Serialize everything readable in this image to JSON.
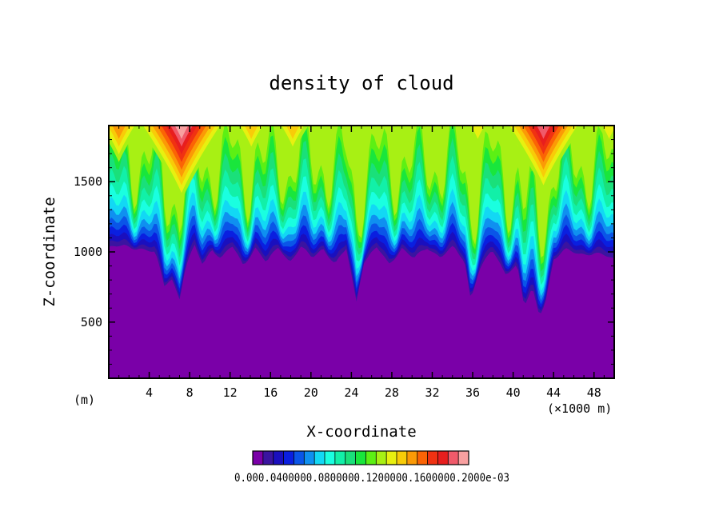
{
  "chart_data": {
    "type": "heatmap",
    "title": "density of cloud",
    "xlabel": "X-coordinate",
    "ylabel": "Z-coordinate",
    "x_unit_label": "(m)",
    "x_scale_label": "(×1000 m)",
    "xlim": [
      0,
      50
    ],
    "ylim": [
      100,
      1900
    ],
    "x_ticks": [
      4,
      8,
      12,
      16,
      20,
      24,
      28,
      32,
      36,
      40,
      44,
      48
    ],
    "x_tick_labels": [
      "4",
      "8",
      "12",
      "16",
      "20",
      "24",
      "28",
      "32",
      "36",
      "40",
      "44",
      "48"
    ],
    "y_ticks": [
      500,
      1000,
      1500
    ],
    "y_tick_labels": [
      "500",
      "1000",
      "1500"
    ],
    "colorbar": {
      "colors": [
        "#7a00a8",
        "#3a14a0",
        "#1a0fbe",
        "#0a1fe0",
        "#0a55e8",
        "#0f90f0",
        "#12d8f4",
        "#1affe0",
        "#12f0a8",
        "#1ae07a",
        "#19e63c",
        "#5cf014",
        "#a8f014",
        "#e8f010",
        "#f8cc08",
        "#fb9a06",
        "#fb6405",
        "#f03212",
        "#e81e1e",
        "#f05a6a",
        "#f8a0a0"
      ],
      "label_text": "0.000.0400000.0800000.1200000.1600000.2000e-03"
    },
    "cloud_base": [
      {
        "x": 0,
        "z": 1000
      },
      {
        "x": 1.5,
        "z": 1010
      },
      {
        "x": 3,
        "z": 1000
      },
      {
        "x": 4.6,
        "z": 960
      },
      {
        "x": 5.5,
        "z": 730
      },
      {
        "x": 6.2,
        "z": 790
      },
      {
        "x": 7.0,
        "z": 640
      },
      {
        "x": 7.6,
        "z": 860
      },
      {
        "x": 8.5,
        "z": 1010
      },
      {
        "x": 9.3,
        "z": 880
      },
      {
        "x": 10.2,
        "z": 1000
      },
      {
        "x": 11.1,
        "z": 920
      },
      {
        "x": 12.2,
        "z": 1010
      },
      {
        "x": 13.3,
        "z": 880
      },
      {
        "x": 14.5,
        "z": 1000
      },
      {
        "x": 15.6,
        "z": 890
      },
      {
        "x": 16.8,
        "z": 1010
      },
      {
        "x": 17.9,
        "z": 900
      },
      {
        "x": 19.0,
        "z": 1000
      },
      {
        "x": 20.1,
        "z": 930
      },
      {
        "x": 21.2,
        "z": 1000
      },
      {
        "x": 22.4,
        "z": 880
      },
      {
        "x": 23.5,
        "z": 990
      },
      {
        "x": 24.5,
        "z": 620
      },
      {
        "x": 25.2,
        "z": 900
      },
      {
        "x": 26.5,
        "z": 1000
      },
      {
        "x": 27.7,
        "z": 880
      },
      {
        "x": 29.0,
        "z": 1000
      },
      {
        "x": 30.2,
        "z": 920
      },
      {
        "x": 31.5,
        "z": 1000
      },
      {
        "x": 32.8,
        "z": 940
      },
      {
        "x": 34.1,
        "z": 1000
      },
      {
        "x": 35.2,
        "z": 900
      },
      {
        "x": 35.8,
        "z": 640
      },
      {
        "x": 36.6,
        "z": 840
      },
      {
        "x": 37.9,
        "z": 980
      },
      {
        "x": 39.2,
        "z": 820
      },
      {
        "x": 40.4,
        "z": 880
      },
      {
        "x": 41.1,
        "z": 580
      },
      {
        "x": 41.9,
        "z": 700
      },
      {
        "x": 42.6,
        "z": 520
      },
      {
        "x": 43.2,
        "z": 620
      },
      {
        "x": 44.0,
        "z": 920
      },
      {
        "x": 45.2,
        "z": 980
      },
      {
        "x": 46.5,
        "z": 960
      },
      {
        "x": 48.0,
        "z": 960
      },
      {
        "x": 50,
        "z": 920
      }
    ],
    "upper_peaks": [
      {
        "x": 1.0,
        "v": 15
      },
      {
        "x": 5.8,
        "v": 16
      },
      {
        "x": 7.2,
        "v": 20
      },
      {
        "x": 14.1,
        "v": 14
      },
      {
        "x": 18.2,
        "v": 14
      },
      {
        "x": 30.5,
        "v": 11
      },
      {
        "x": 36.5,
        "v": 13
      },
      {
        "x": 40.5,
        "v": 14
      },
      {
        "x": 43.0,
        "v": 19
      },
      {
        "x": 49.5,
        "v": 13
      }
    ]
  }
}
